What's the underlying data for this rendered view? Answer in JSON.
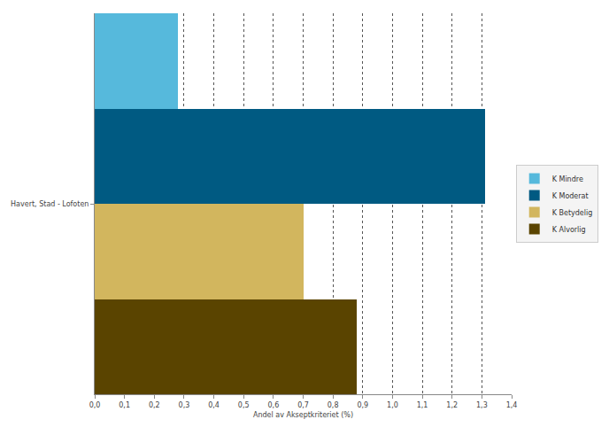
{
  "chart_data": {
    "type": "bar",
    "orientation": "horizontal",
    "categories": [
      "Havert, Stad - Lofoten"
    ],
    "series": [
      {
        "name": "K Mindre",
        "color": "#56b9dc",
        "values": [
          0.28
        ]
      },
      {
        "name": "K Moderat",
        "color": "#005a82",
        "values": [
          1.31
        ]
      },
      {
        "name": "K Betydelig",
        "color": "#d2b65e",
        "values": [
          0.7
        ]
      },
      {
        "name": "K Alvorlig",
        "color": "#5a4400",
        "values": [
          0.88
        ]
      }
    ],
    "x_label": "Andel av Akseptkriteriet (%)",
    "xlim": [
      0,
      1.4
    ],
    "xticks": [
      {
        "value": 0,
        "label": "0,0"
      },
      {
        "value": 0.1,
        "label": "0,1"
      },
      {
        "value": 0.2,
        "label": "0,2"
      },
      {
        "value": 0.3,
        "label": "0,3"
      },
      {
        "value": 0.4,
        "label": "0,4"
      },
      {
        "value": 0.5,
        "label": "0,5"
      },
      {
        "value": 0.6,
        "label": "0,6"
      },
      {
        "value": 0.7,
        "label": "0,7"
      },
      {
        "value": 0.8,
        "label": "0,8"
      },
      {
        "value": 0.9,
        "label": "0,9"
      },
      {
        "value": 1.0,
        "label": "1,0"
      },
      {
        "value": 1.1,
        "label": "1,1"
      },
      {
        "value": 1.2,
        "label": "1,2"
      },
      {
        "value": 1.3,
        "label": "1,3"
      },
      {
        "value": 1.4,
        "label": "1,4"
      }
    ],
    "grid": true,
    "legend": "right"
  }
}
